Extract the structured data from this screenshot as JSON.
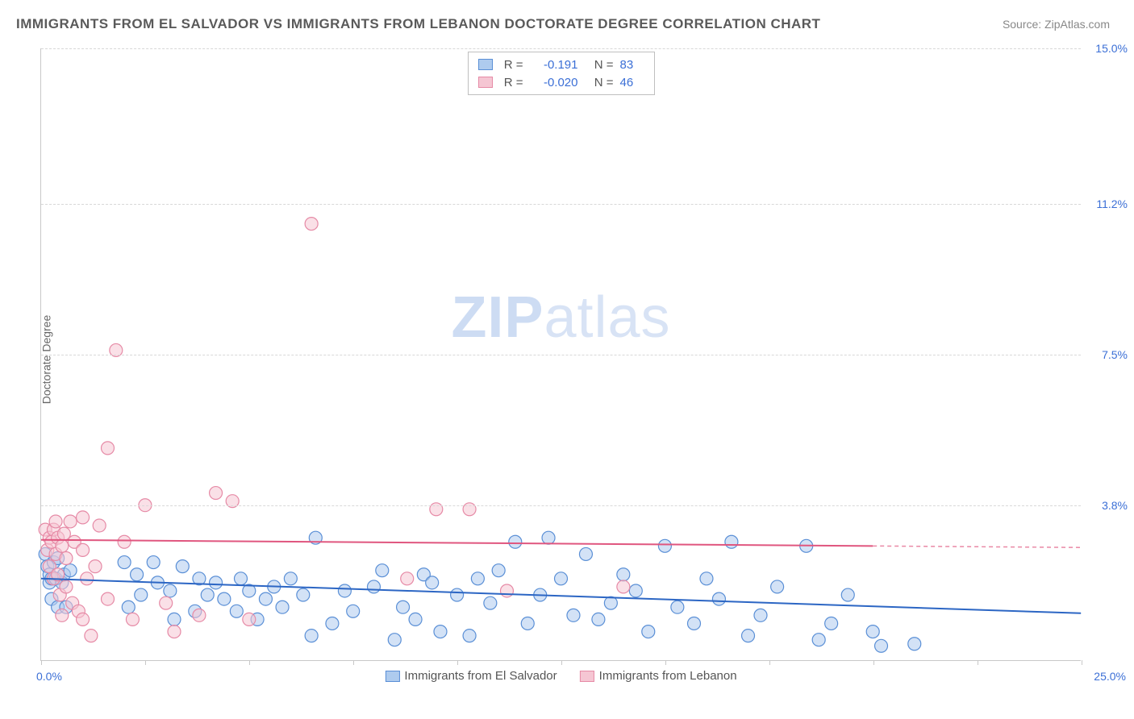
{
  "title": "IMMIGRANTS FROM EL SALVADOR VS IMMIGRANTS FROM LEBANON DOCTORATE DEGREE CORRELATION CHART",
  "source_label": "Source: ",
  "source_value": "ZipAtlas.com",
  "ylabel": "Doctorate Degree",
  "watermark_a": "ZIP",
  "watermark_b": "atlas",
  "chart": {
    "type": "scatter",
    "xlim": [
      0,
      25
    ],
    "ylim": [
      0,
      15
    ],
    "y_ticks": [
      3.8,
      7.5,
      11.2,
      15.0
    ],
    "y_tick_labels": [
      "3.8%",
      "7.5%",
      "11.2%",
      "15.0%"
    ],
    "x_min_label": "0.0%",
    "x_max_label": "25.0%",
    "x_tick_positions": [
      0,
      2.5,
      5,
      7.5,
      10,
      12.5,
      15,
      17.5,
      20,
      22.5,
      25
    ],
    "grid_color": "#d8d8d8",
    "axis_color": "#c8c8c8",
    "tick_label_color": "#3b6fd6",
    "marker_radius": 8,
    "marker_opacity": 0.55,
    "series": [
      {
        "key": "el_salvador",
        "label": "Immigrants from El Salvador",
        "fill": "#aecbee",
        "stroke": "#5a8fd6",
        "line_color": "#2c66c4",
        "R": "-0.191",
        "N": "83",
        "trend": {
          "x1": 0,
          "y1": 2.0,
          "x2": 25,
          "y2": 1.15,
          "extend_dashed_from": 25
        },
        "points": [
          [
            0.1,
            2.6
          ],
          [
            0.15,
            2.3
          ],
          [
            0.2,
            1.9
          ],
          [
            0.2,
            2.1
          ],
          [
            0.25,
            2.0
          ],
          [
            0.25,
            1.5
          ],
          [
            0.3,
            2.4
          ],
          [
            0.35,
            2.0
          ],
          [
            0.4,
            2.5
          ],
          [
            0.4,
            1.3
          ],
          [
            0.5,
            1.9
          ],
          [
            0.55,
            2.1
          ],
          [
            0.6,
            1.3
          ],
          [
            0.7,
            2.2
          ],
          [
            2.0,
            2.4
          ],
          [
            2.1,
            1.3
          ],
          [
            2.3,
            2.1
          ],
          [
            2.4,
            1.6
          ],
          [
            2.7,
            2.4
          ],
          [
            2.8,
            1.9
          ],
          [
            3.1,
            1.7
          ],
          [
            3.2,
            1.0
          ],
          [
            3.4,
            2.3
          ],
          [
            3.7,
            1.2
          ],
          [
            3.8,
            2.0
          ],
          [
            4.0,
            1.6
          ],
          [
            4.2,
            1.9
          ],
          [
            4.4,
            1.5
          ],
          [
            4.7,
            1.2
          ],
          [
            4.8,
            2.0
          ],
          [
            5.0,
            1.7
          ],
          [
            5.2,
            1.0
          ],
          [
            5.4,
            1.5
          ],
          [
            5.6,
            1.8
          ],
          [
            5.8,
            1.3
          ],
          [
            6.0,
            2.0
          ],
          [
            6.3,
            1.6
          ],
          [
            6.5,
            0.6
          ],
          [
            6.6,
            3.0
          ],
          [
            7.0,
            0.9
          ],
          [
            7.3,
            1.7
          ],
          [
            7.5,
            1.2
          ],
          [
            8.0,
            1.8
          ],
          [
            8.2,
            2.2
          ],
          [
            8.5,
            0.5
          ],
          [
            8.7,
            1.3
          ],
          [
            9.0,
            1.0
          ],
          [
            9.2,
            2.1
          ],
          [
            9.4,
            1.9
          ],
          [
            9.6,
            0.7
          ],
          [
            10.0,
            1.6
          ],
          [
            10.3,
            0.6
          ],
          [
            10.5,
            2.0
          ],
          [
            10.8,
            1.4
          ],
          [
            11.0,
            2.2
          ],
          [
            11.4,
            2.9
          ],
          [
            11.7,
            0.9
          ],
          [
            12.0,
            1.6
          ],
          [
            12.2,
            3.0
          ],
          [
            12.5,
            2.0
          ],
          [
            12.8,
            1.1
          ],
          [
            13.1,
            2.6
          ],
          [
            13.4,
            1.0
          ],
          [
            13.7,
            1.4
          ],
          [
            14.0,
            2.1
          ],
          [
            14.3,
            1.7
          ],
          [
            14.6,
            0.7
          ],
          [
            15.0,
            2.8
          ],
          [
            15.3,
            1.3
          ],
          [
            15.7,
            0.9
          ],
          [
            16.0,
            2.0
          ],
          [
            16.3,
            1.5
          ],
          [
            16.6,
            2.9
          ],
          [
            17.0,
            0.6
          ],
          [
            17.3,
            1.1
          ],
          [
            17.7,
            1.8
          ],
          [
            18.4,
            2.8
          ],
          [
            18.7,
            0.5
          ],
          [
            19.0,
            0.9
          ],
          [
            19.4,
            1.6
          ],
          [
            20.0,
            0.7
          ],
          [
            20.2,
            0.35
          ],
          [
            21.0,
            0.4
          ]
        ]
      },
      {
        "key": "lebanon",
        "label": "Immigrants from Lebanon",
        "fill": "#f5c6d3",
        "stroke": "#e68aa6",
        "line_color": "#e0567f",
        "R": "-0.020",
        "N": "46",
        "trend": {
          "x1": 0,
          "y1": 2.95,
          "x2": 20,
          "y2": 2.8,
          "extend_dashed_from": 20
        },
        "points": [
          [
            0.1,
            3.2
          ],
          [
            0.15,
            2.7
          ],
          [
            0.2,
            3.0
          ],
          [
            0.2,
            2.3
          ],
          [
            0.25,
            2.9
          ],
          [
            0.3,
            3.2
          ],
          [
            0.3,
            2.0
          ],
          [
            0.35,
            3.4
          ],
          [
            0.35,
            2.6
          ],
          [
            0.4,
            2.1
          ],
          [
            0.4,
            3.0
          ],
          [
            0.45,
            1.6
          ],
          [
            0.5,
            2.8
          ],
          [
            0.5,
            1.1
          ],
          [
            0.55,
            3.1
          ],
          [
            0.6,
            1.8
          ],
          [
            0.6,
            2.5
          ],
          [
            0.7,
            3.4
          ],
          [
            0.75,
            1.4
          ],
          [
            0.8,
            2.9
          ],
          [
            0.9,
            1.2
          ],
          [
            1.0,
            3.5
          ],
          [
            1.0,
            2.7
          ],
          [
            1.0,
            1.0
          ],
          [
            1.1,
            2.0
          ],
          [
            1.2,
            0.6
          ],
          [
            1.3,
            2.3
          ],
          [
            1.4,
            3.3
          ],
          [
            1.6,
            5.2
          ],
          [
            1.6,
            1.5
          ],
          [
            1.8,
            7.6
          ],
          [
            2.0,
            2.9
          ],
          [
            2.2,
            1.0
          ],
          [
            2.5,
            3.8
          ],
          [
            3.0,
            1.4
          ],
          [
            3.2,
            0.7
          ],
          [
            3.8,
            1.1
          ],
          [
            4.2,
            4.1
          ],
          [
            4.6,
            3.9
          ],
          [
            5.0,
            1.0
          ],
          [
            6.5,
            10.7
          ],
          [
            8.8,
            2.0
          ],
          [
            9.5,
            3.7
          ],
          [
            10.3,
            3.7
          ],
          [
            11.2,
            1.7
          ],
          [
            14.0,
            1.8
          ]
        ]
      }
    ]
  },
  "legend": {
    "r_label": "R =",
    "n_label": "N ="
  }
}
